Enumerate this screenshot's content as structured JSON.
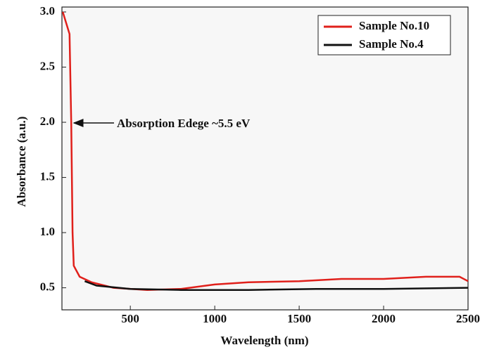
{
  "chart_data": {
    "type": "line",
    "x_label": "Wavelength (nm)",
    "y_label": "Absorbance (a.u.)",
    "annotation": "Absorption Edege ~5.5 eV",
    "series": [
      {
        "name": "Sample No.10",
        "color": "#e0201b",
        "x": [
          100,
          140,
          150,
          158,
          165,
          200,
          270,
          400,
          600,
          800,
          1000,
          1200,
          1500,
          1750,
          2000,
          2250,
          2450,
          2500
        ],
        "values": [
          3.0,
          2.8,
          2.0,
          1.0,
          0.7,
          0.6,
          0.55,
          0.5,
          0.48,
          0.49,
          0.53,
          0.55,
          0.56,
          0.58,
          0.58,
          0.6,
          0.6,
          0.56
        ]
      },
      {
        "name": "Sample No.4",
        "color": "#111111",
        "x": [
          230,
          300,
          500,
          800,
          1200,
          1600,
          2000,
          2500
        ],
        "values": [
          0.56,
          0.52,
          0.49,
          0.48,
          0.48,
          0.49,
          0.49,
          0.5
        ]
      }
    ],
    "xlim": [
      95,
      2500
    ],
    "xticks": [
      500,
      1000,
      1500,
      2000,
      2500
    ],
    "ylim": [
      0.3,
      3.0
    ],
    "yticks": [
      {
        "value": 3,
        "label": "3.0"
      },
      2.5,
      {
        "value": 2,
        "label": "2.0"
      },
      1.5,
      {
        "value": 1,
        "label": "1.0"
      },
      0.5
    ],
    "legend": "upper right"
  }
}
